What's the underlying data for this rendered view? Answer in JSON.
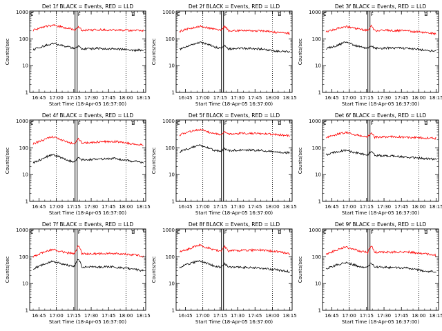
{
  "figure": {
    "ylabel": "Counts/sec",
    "xlabel": "Start Time (18-Apr-05 16:37:00)",
    "x_ticks": [
      "16:45",
      "17:00",
      "17:15",
      "17:30",
      "17:45",
      "18:00",
      "18:15"
    ],
    "y_ticks": [
      "1",
      "10",
      "100",
      "1000"
    ],
    "marker_labels": [
      "E",
      "F",
      "E"
    ],
    "colors": {
      "events": "#000000",
      "lld": "#ff0000",
      "axes": "#000000",
      "guides": "#000000"
    }
  },
  "chart_data": [
    {
      "type": "line",
      "title": "Det 1f BLACK = Events, RED = LLD",
      "yscale": "log",
      "ylim": [
        1,
        1100
      ],
      "xlim": [
        "16:37",
        "18:17"
      ],
      "xlabel": "Start Time (18-Apr-05 16:37:00)",
      "ylabel": "Counts/sec",
      "x": [
        "16:40",
        "16:48",
        "16:57",
        "17:03",
        "17:10",
        "17:16",
        "17:19",
        "17:22",
        "17:35",
        "17:50",
        "18:05",
        "18:15"
      ],
      "series": [
        {
          "name": "LLD",
          "values": [
            210,
            270,
            330,
            290,
            250,
            220,
            280,
            210,
            220,
            220,
            205,
            205
          ]
        },
        {
          "name": "Events",
          "values": [
            40,
            52,
            70,
            60,
            50,
            44,
            52,
            42,
            44,
            43,
            38,
            38
          ]
        }
      ]
    },
    {
      "type": "line",
      "title": "Det 2f BLACK = Events, RED = LLD",
      "yscale": "log",
      "ylim": [
        1,
        1100
      ],
      "xlim": [
        "16:37",
        "18:17"
      ],
      "xlabel": "Start Time (18-Apr-05 16:37:00)",
      "ylabel": "Counts/sec",
      "x": [
        "16:40",
        "16:48",
        "16:57",
        "17:03",
        "17:10",
        "17:16",
        "17:19",
        "17:22",
        "17:35",
        "17:50",
        "18:05",
        "18:15"
      ],
      "series": [
        {
          "name": "LLD",
          "values": [
            190,
            240,
            300,
            270,
            230,
            215,
            300,
            200,
            205,
            200,
            175,
            160
          ]
        },
        {
          "name": "Events",
          "values": [
            40,
            55,
            75,
            65,
            50,
            45,
            55,
            42,
            45,
            42,
            34,
            33
          ]
        }
      ]
    },
    {
      "type": "line",
      "title": "Det 3f BLACK = Events, RED = LLD",
      "yscale": "log",
      "ylim": [
        1,
        1100
      ],
      "xlim": [
        "16:37",
        "18:17"
      ],
      "xlabel": "Start Time (18-Apr-05 16:37:00)",
      "ylabel": "Counts/sec",
      "x": [
        "16:40",
        "16:48",
        "16:57",
        "17:03",
        "17:10",
        "17:16",
        "17:19",
        "17:22",
        "17:35",
        "17:50",
        "18:05",
        "18:15"
      ],
      "series": [
        {
          "name": "LLD",
          "values": [
            180,
            230,
            290,
            260,
            230,
            205,
            300,
            200,
            210,
            200,
            175,
            150
          ]
        },
        {
          "name": "Events",
          "values": [
            42,
            55,
            75,
            62,
            50,
            45,
            55,
            44,
            46,
            45,
            38,
            35
          ]
        }
      ]
    },
    {
      "type": "line",
      "title": "Det 4f BLACK = Events, RED = LLD",
      "yscale": "log",
      "ylim": [
        1,
        1100
      ],
      "xlim": [
        "16:37",
        "18:17"
      ],
      "xlabel": "Start Time (18-Apr-05 16:37:00)",
      "ylabel": "Counts/sec",
      "x": [
        "16:40",
        "16:48",
        "16:57",
        "17:03",
        "17:10",
        "17:16",
        "17:19",
        "17:22",
        "17:35",
        "17:50",
        "18:05",
        "18:15"
      ],
      "series": [
        {
          "name": "LLD",
          "values": [
            140,
            190,
            260,
            210,
            160,
            140,
            230,
            150,
            165,
            175,
            140,
            125
          ]
        },
        {
          "name": "Events",
          "values": [
            28,
            38,
            58,
            45,
            33,
            30,
            45,
            35,
            38,
            40,
            32,
            28
          ]
        }
      ]
    },
    {
      "type": "line",
      "title": "Det 5f BLACK = Events, RED = LLD",
      "yscale": "log",
      "ylim": [
        1,
        1100
      ],
      "xlim": [
        "16:37",
        "18:17"
      ],
      "xlabel": "Start Time (18-Apr-05 16:37:00)",
      "ylabel": "Counts/sec",
      "x": [
        "16:40",
        "16:48",
        "16:57",
        "17:03",
        "17:10",
        "17:16",
        "17:19",
        "17:22",
        "17:35",
        "17:50",
        "18:05",
        "18:15"
      ],
      "series": [
        {
          "name": "LLD",
          "values": [
            300,
            400,
            480,
            420,
            340,
            320,
            380,
            330,
            350,
            340,
            310,
            290
          ]
        },
        {
          "name": "Events",
          "values": [
            70,
            95,
            125,
            105,
            80,
            75,
            95,
            80,
            85,
            80,
            70,
            65
          ]
        }
      ]
    },
    {
      "type": "line",
      "title": "Det 6f BLACK = Events, RED = LLD",
      "yscale": "log",
      "ylim": [
        1,
        1100
      ],
      "xlim": [
        "16:37",
        "18:17"
      ],
      "xlabel": "Start Time (18-Apr-05 16:37:00)",
      "ylabel": "Counts/sec",
      "x": [
        "16:40",
        "16:48",
        "16:57",
        "17:03",
        "17:10",
        "17:16",
        "17:19",
        "17:22",
        "17:35",
        "17:50",
        "18:05",
        "18:15"
      ],
      "series": [
        {
          "name": "LLD",
          "values": [
            250,
            310,
            380,
            330,
            280,
            260,
            380,
            250,
            260,
            250,
            235,
            225
          ]
        },
        {
          "name": "Events",
          "values": [
            55,
            68,
            82,
            70,
            60,
            55,
            75,
            52,
            50,
            45,
            40,
            37
          ]
        }
      ]
    },
    {
      "type": "line",
      "title": "Det 7f BLACK = Events, RED = LLD",
      "yscale": "log",
      "ylim": [
        1,
        1100
      ],
      "xlim": [
        "16:37",
        "18:17"
      ],
      "xlabel": "Start Time (18-Apr-05 16:37:00)",
      "ylabel": "Counts/sec",
      "x": [
        "16:40",
        "16:48",
        "16:57",
        "17:03",
        "17:10",
        "17:16",
        "17:19",
        "17:22",
        "17:35",
        "17:50",
        "18:05",
        "18:15"
      ],
      "series": [
        {
          "name": "LLD",
          "values": [
            100,
            140,
            190,
            160,
            140,
            135,
            260,
            130,
            130,
            135,
            120,
            105
          ]
        },
        {
          "name": "Events",
          "values": [
            35,
            50,
            68,
            58,
            48,
            45,
            80,
            42,
            42,
            42,
            35,
            30
          ]
        }
      ]
    },
    {
      "type": "line",
      "title": "Det 8f BLACK = Events, RED = LLD",
      "yscale": "log",
      "ylim": [
        1,
        1100
      ],
      "xlim": [
        "16:37",
        "18:17"
      ],
      "xlabel": "Start Time (18-Apr-05 16:37:00)",
      "ylabel": "Counts/sec",
      "x": [
        "16:40",
        "16:48",
        "16:57",
        "17:03",
        "17:10",
        "17:16",
        "17:19",
        "17:22",
        "17:35",
        "17:50",
        "18:05",
        "18:15"
      ],
      "series": [
        {
          "name": "LLD",
          "values": [
            150,
            200,
            270,
            230,
            180,
            160,
            240,
            165,
            175,
            180,
            155,
            130
          ]
        },
        {
          "name": "Events",
          "values": [
            40,
            55,
            70,
            58,
            45,
            40,
            55,
            42,
            40,
            38,
            32,
            28
          ]
        }
      ]
    },
    {
      "type": "line",
      "title": "Det 9f BLACK = Events, RED = LLD",
      "yscale": "log",
      "ylim": [
        1,
        1100
      ],
      "xlim": [
        "16:37",
        "18:17"
      ],
      "xlabel": "Start Time (18-Apr-05 16:37:00)",
      "ylabel": "Counts/sec",
      "x": [
        "16:40",
        "16:48",
        "16:57",
        "17:03",
        "17:10",
        "17:16",
        "17:19",
        "17:22",
        "17:35",
        "17:50",
        "18:05",
        "18:15"
      ],
      "series": [
        {
          "name": "LLD",
          "values": [
            120,
            170,
            230,
            200,
            160,
            145,
            260,
            150,
            150,
            155,
            130,
            115
          ]
        },
        {
          "name": "Events",
          "values": [
            35,
            48,
            62,
            52,
            42,
            40,
            60,
            42,
            40,
            38,
            30,
            27
          ]
        }
      ]
    }
  ]
}
